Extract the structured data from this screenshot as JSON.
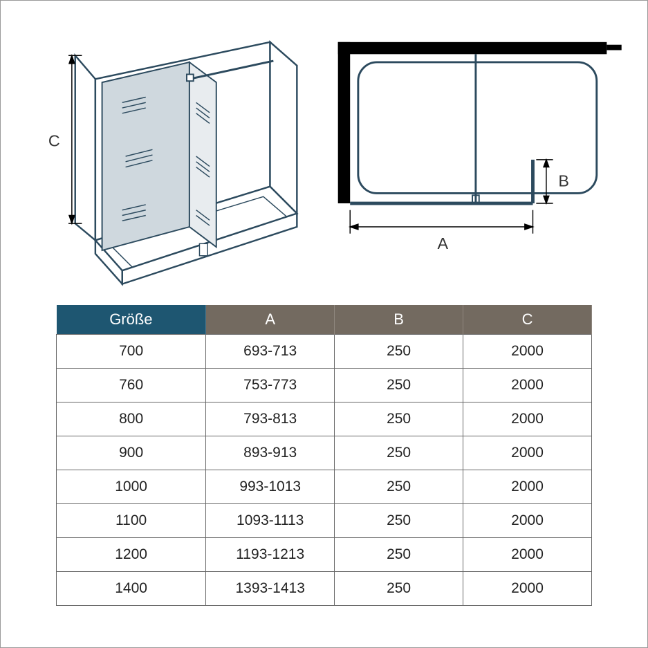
{
  "diagram": {
    "label_c": "C",
    "label_a": "A",
    "label_b": "B",
    "stroke_color": "#2c4a5e",
    "glass_fill": "#cfd8de",
    "glass_fill2": "#e8ecef",
    "bg": "#ffffff"
  },
  "table": {
    "headers": {
      "size": "Größe",
      "a": "A",
      "b": "B",
      "c": "C"
    },
    "header_colors": {
      "size_bg": "#1e5671",
      "dim_bg": "#736a60",
      "text": "#ffffff"
    },
    "cell_border": "#666666",
    "cell_text_color": "#222222",
    "cell_fontsize": 21,
    "rows": [
      {
        "size": "700",
        "a": "693-713",
        "b": "250",
        "c": "2000"
      },
      {
        "size": "760",
        "a": "753-773",
        "b": "250",
        "c": "2000"
      },
      {
        "size": "800",
        "a": "793-813",
        "b": "250",
        "c": "2000"
      },
      {
        "size": "900",
        "a": "893-913",
        "b": "250",
        "c": "2000"
      },
      {
        "size": "1000",
        "a": "993-1013",
        "b": "250",
        "c": "2000"
      },
      {
        "size": "1100",
        "a": "1093-1113",
        "b": "250",
        "c": "2000"
      },
      {
        "size": "1200",
        "a": "1193-1213",
        "b": "250",
        "c": "2000"
      },
      {
        "size": "1400",
        "a": "1393-1413",
        "b": "250",
        "c": "2000"
      }
    ]
  }
}
